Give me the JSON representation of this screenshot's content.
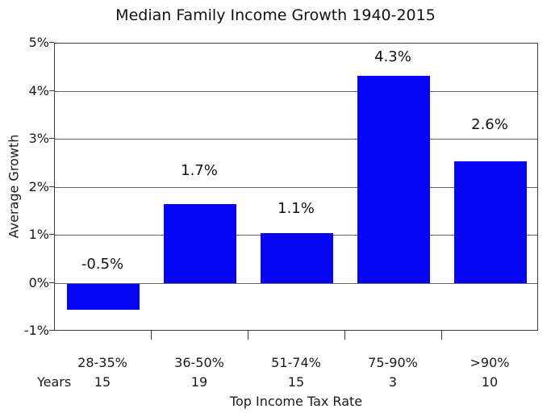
{
  "title": "Median Family Income Growth 1940-2015",
  "chart_data": {
    "type": "bar",
    "title": "Median Family Income Growth 1940-2015",
    "categories": [
      "28-35%",
      "36-50%",
      "51-74%",
      "75-90%",
      ">90%"
    ],
    "values": [
      -0.55,
      1.65,
      1.05,
      4.32,
      2.55
    ],
    "bar_labels": [
      "-0.5%",
      "1.7%",
      "1.1%",
      "4.3%",
      "2.6%"
    ],
    "years_row": {
      "label": "Years",
      "values": [
        "15",
        "19",
        "15",
        "3",
        "10"
      ]
    },
    "xlabel": "Top Income Tax Rate",
    "ylabel": "Average Growth",
    "ylim": [
      -1,
      5
    ],
    "ytick_labels": [
      "5%",
      "4%",
      "3%",
      "2%",
      "1%",
      "0%",
      "-1%"
    ],
    "ytick_values": [
      5,
      4,
      3,
      2,
      1,
      0,
      -1
    ],
    "grid": "horizontal",
    "legend": "none",
    "bar_color": "#0606f2"
  }
}
